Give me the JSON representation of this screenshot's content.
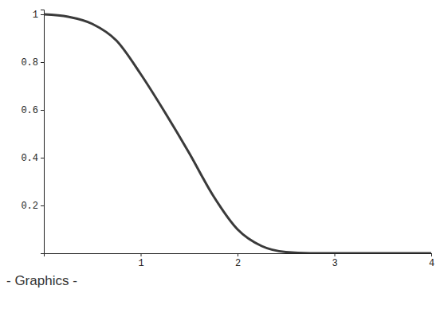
{
  "chart_data": {
    "type": "line",
    "annotation": "- Graphics -",
    "x": [
      0,
      0.25,
      0.5,
      0.75,
      1,
      1.25,
      1.5,
      1.75,
      2,
      2.25,
      2.5,
      2.75,
      3,
      3.5,
      4
    ],
    "values": [
      1,
      0.99,
      0.96,
      0.89,
      0.75,
      0.59,
      0.42,
      0.24,
      0.1,
      0.03,
      0.005,
      0,
      0,
      0,
      0
    ],
    "color": "#3a3a3a",
    "xlim": [
      0,
      4
    ],
    "ylim": [
      0,
      1.02
    ],
    "xticks": [
      1,
      2,
      3,
      4
    ],
    "yticks": [
      0.2,
      0.4,
      0.6,
      0.8,
      1
    ],
    "grid": false
  }
}
